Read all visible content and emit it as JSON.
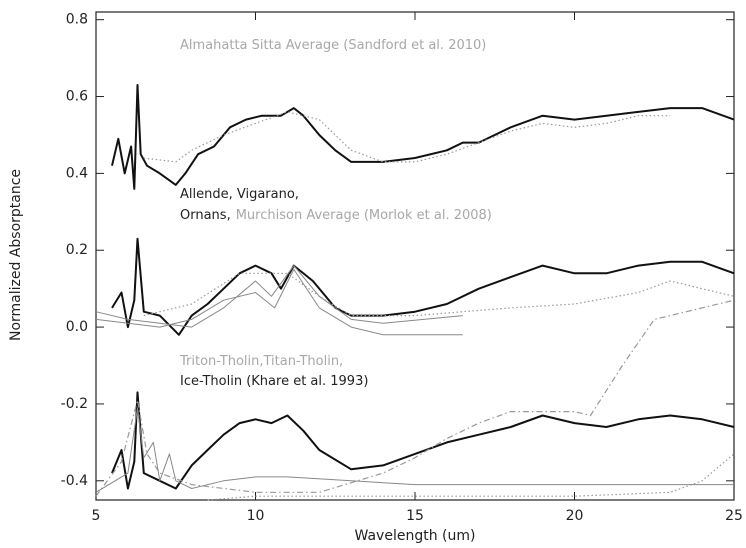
{
  "chart_data": {
    "type": "line",
    "xlabel": "Wavelength (um)",
    "ylabel": "Normalized Absorptance",
    "xlim": [
      5,
      25
    ],
    "xticks": [
      5,
      10,
      15,
      20,
      25
    ],
    "ylim": [
      -0.45,
      0.82
    ],
    "yticks": [
      -0.4,
      -0.2,
      {
        "value": 0,
        "label": "0.0"
      },
      0.2,
      0.4,
      0.6,
      0.8
    ],
    "annotations": [
      [
        {
          "text": "Almahatta Sitta Average (Sandford et al. 2010)",
          "color": "#a8a8a8"
        }
      ],
      [
        {
          "text": "Allende, Vigarano,",
          "color": "#222222"
        }
      ],
      [
        {
          "text": "Ornans,",
          "color": "#222222"
        },
        {
          "text": "Murchison Average (Morlok et al. 2008)",
          "color": "#a8a8a8"
        }
      ],
      [
        {
          "text": "Triton-Tholin,Titan-Tholin,",
          "color": "#a8a8a8"
        }
      ],
      [
        {
          "text": "Ice-Tholin (Khare et al. 1993)",
          "color": "#222222"
        }
      ]
    ],
    "series": [
      {
        "color": "#111111",
        "style": "solid",
        "width": 2,
        "x": [
          5.5,
          5.7,
          5.9,
          6.1,
          6.2,
          6.3,
          6.4,
          6.6,
          7,
          7.5,
          7.8,
          8.2,
          8.7,
          9.2,
          9.7,
          10.2,
          10.8,
          11.2,
          11.5,
          12,
          12.5,
          13,
          14,
          15,
          16,
          16.5,
          17,
          18,
          19,
          20,
          21,
          22,
          23,
          24,
          25
        ],
        "values": [
          0.42,
          0.49,
          0.4,
          0.47,
          0.36,
          0.63,
          0.45,
          0.42,
          0.4,
          0.37,
          0.4,
          0.45,
          0.47,
          0.52,
          0.54,
          0.55,
          0.55,
          0.57,
          0.55,
          0.5,
          0.46,
          0.43,
          0.43,
          0.44,
          0.46,
          0.48,
          0.48,
          0.52,
          0.55,
          0.54,
          0.55,
          0.56,
          0.57,
          0.57,
          0.54
        ]
      },
      {
        "color": "#999999",
        "style": "dotted",
        "width": 1.2,
        "x": [
          6.5,
          7.5,
          8,
          9,
          10,
          11,
          12,
          13,
          14,
          15,
          16,
          17,
          18,
          19,
          20,
          21,
          22,
          23
        ],
        "values": [
          0.44,
          0.43,
          0.46,
          0.5,
          0.53,
          0.56,
          0.54,
          0.46,
          0.43,
          0.43,
          0.45,
          0.48,
          0.51,
          0.53,
          0.52,
          0.53,
          0.55,
          0.55
        ]
      },
      {
        "color": "#111111",
        "style": "solid",
        "width": 2,
        "x": [
          5.5,
          5.8,
          6.0,
          6.2,
          6.3,
          6.5,
          7,
          7.6,
          8,
          8.5,
          9,
          9.5,
          10,
          10.5,
          10.8,
          11.2,
          11.8,
          12.5,
          13,
          14,
          15,
          16,
          17,
          18,
          19,
          20,
          21,
          22,
          23,
          24,
          25
        ],
        "values": [
          0.05,
          0.09,
          0.0,
          0.07,
          0.23,
          0.04,
          0.03,
          -0.02,
          0.03,
          0.06,
          0.1,
          0.14,
          0.16,
          0.14,
          0.1,
          0.16,
          0.12,
          0.05,
          0.03,
          0.03,
          0.04,
          0.06,
          0.1,
          0.13,
          0.16,
          0.14,
          0.14,
          0.16,
          0.17,
          0.17,
          0.14
        ]
      },
      {
        "color": "#888888",
        "style": "solid",
        "width": 1,
        "x": [
          5,
          6,
          7,
          8,
          9,
          10,
          10.5,
          11.2,
          12,
          13,
          14,
          16.5
        ],
        "values": [
          0.04,
          0.02,
          0.01,
          0.0,
          0.05,
          0.12,
          0.08,
          0.16,
          0.08,
          0.02,
          0.01,
          0.03
        ]
      },
      {
        "color": "#888888",
        "style": "solid",
        "width": 1,
        "x": [
          5,
          7,
          8,
          9,
          10,
          10.6,
          11.2,
          12,
          13,
          14,
          16.5
        ],
        "values": [
          0.02,
          0.0,
          0.02,
          0.07,
          0.09,
          0.05,
          0.15,
          0.05,
          0.0,
          -0.02,
          -0.02
        ]
      },
      {
        "color": "#999999",
        "style": "dotted",
        "width": 1.2,
        "x": [
          6.5,
          8,
          9.5,
          10.5,
          11,
          12,
          13,
          15,
          16.5,
          18,
          20,
          22,
          23,
          24,
          25
        ],
        "values": [
          0.03,
          0.06,
          0.14,
          0.14,
          0.14,
          0.08,
          0.03,
          0.03,
          0.04,
          0.05,
          0.06,
          0.09,
          0.12,
          0.1,
          0.08
        ]
      },
      {
        "color": "#111111",
        "style": "solid",
        "width": 2,
        "x": [
          5.5,
          5.8,
          6.0,
          6.2,
          6.3,
          6.5,
          7,
          7.5,
          8,
          8.5,
          9,
          9.5,
          10,
          10.5,
          11,
          11.5,
          12,
          13,
          14,
          15,
          16,
          17,
          18,
          19,
          20,
          21,
          22,
          23,
          24,
          25
        ],
        "values": [
          -0.38,
          -0.32,
          -0.42,
          -0.35,
          -0.17,
          -0.38,
          -0.4,
          -0.42,
          -0.36,
          -0.32,
          -0.28,
          -0.25,
          -0.24,
          -0.25,
          -0.23,
          -0.27,
          -0.32,
          -0.37,
          -0.36,
          -0.33,
          -0.3,
          -0.28,
          -0.26,
          -0.23,
          -0.25,
          -0.26,
          -0.24,
          -0.23,
          -0.24,
          -0.26
        ]
      },
      {
        "color": "#999999",
        "style": "dashdot",
        "width": 1.2,
        "x": [
          5,
          5.8,
          6.3,
          6.6,
          7,
          8,
          10,
          12,
          14,
          15,
          16,
          17,
          18,
          20,
          20.5,
          21.5,
          22.5,
          25
        ],
        "values": [
          -0.44,
          -0.35,
          -0.19,
          -0.33,
          -0.38,
          -0.41,
          -0.43,
          -0.43,
          -0.38,
          -0.34,
          -0.29,
          -0.25,
          -0.22,
          -0.22,
          -0.23,
          -0.1,
          0.02,
          0.07
        ]
      },
      {
        "color": "#888888",
        "style": "solid",
        "width": 1,
        "x": [
          5,
          6,
          6.3,
          6.5,
          6.8,
          7,
          7.3,
          7.5,
          8,
          9,
          10,
          11,
          13,
          15,
          20,
          25
        ],
        "values": [
          -0.43,
          -0.38,
          -0.21,
          -0.34,
          -0.3,
          -0.4,
          -0.33,
          -0.4,
          -0.42,
          -0.4,
          -0.39,
          -0.39,
          -0.4,
          -0.41,
          -0.41,
          -0.41
        ]
      },
      {
        "color": "#999999",
        "style": "dotted",
        "width": 1.2,
        "x": [
          8.5,
          10,
          14,
          20,
          23,
          24,
          25
        ],
        "values": [
          -0.45,
          -0.44,
          -0.44,
          -0.44,
          -0.43,
          -0.4,
          -0.33
        ]
      }
    ]
  }
}
